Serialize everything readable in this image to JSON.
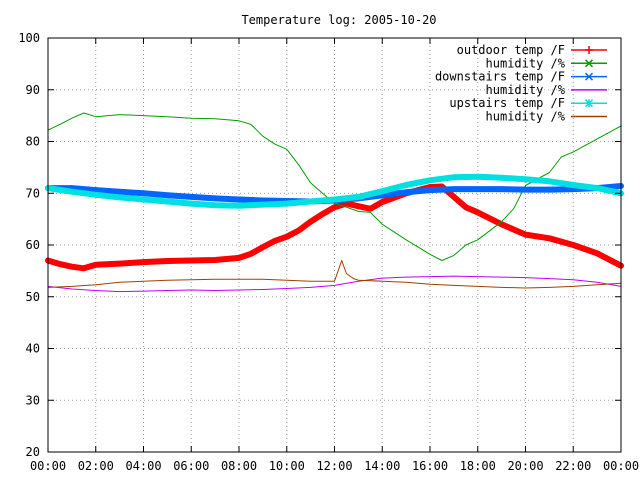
{
  "chart_data": {
    "type": "line",
    "title": "Temperature log: 2005-10-20",
    "xlabel": "",
    "ylabel": "",
    "xlim": [
      0,
      24
    ],
    "ylim": [
      20,
      100
    ],
    "x_ticks": [
      "00:00",
      "02:00",
      "04:00",
      "06:00",
      "08:00",
      "10:00",
      "12:00",
      "14:00",
      "16:00",
      "18:00",
      "20:00",
      "22:00",
      "00:00"
    ],
    "y_ticks": [
      20,
      30,
      40,
      50,
      60,
      70,
      80,
      90,
      100
    ],
    "grid": true,
    "legend_position": "top-right",
    "series": [
      {
        "name": "outdoor temp /F",
        "color": "#ff0000",
        "width": 6,
        "marker": "+",
        "x": [
          0,
          0.5,
          1,
          1.5,
          2,
          3,
          4,
          5,
          6,
          7,
          8,
          8.5,
          9,
          9.5,
          10,
          10.5,
          11,
          11.5,
          12,
          12.5,
          13,
          13.5,
          14,
          15,
          16,
          16.5,
          17,
          17.5,
          18,
          19,
          20,
          21,
          22,
          23,
          24
        ],
        "y": [
          57,
          56.3,
          55.8,
          55.5,
          56.2,
          56.4,
          56.7,
          56.9,
          57.0,
          57.1,
          57.5,
          58.3,
          59.6,
          60.8,
          61.6,
          62.8,
          64.5,
          66.0,
          67.3,
          68.0,
          67.5,
          67.0,
          68.3,
          70.0,
          71.2,
          71.3,
          69.3,
          67.3,
          66.3,
          64.0,
          62.0,
          61.3,
          60.0,
          58.4,
          56.0
        ]
      },
      {
        "name": "humidity /%",
        "color": "#00a000",
        "width": 1,
        "marker": "x",
        "x": [
          0,
          0.5,
          1,
          1.5,
          2,
          3,
          4,
          5,
          6,
          7,
          8,
          8.5,
          9,
          9.5,
          10,
          10.5,
          11,
          11.5,
          12,
          12.5,
          13,
          13.5,
          14,
          15,
          16,
          16.5,
          17,
          17.5,
          18,
          19,
          19.5,
          20,
          21,
          21.5,
          22,
          23,
          24
        ],
        "y": [
          82.2,
          83.3,
          84.5,
          85.5,
          84.8,
          85.2,
          85.0,
          84.8,
          84.5,
          84.4,
          84.0,
          83.3,
          81.0,
          79.5,
          78.5,
          75.5,
          72.0,
          70.0,
          68.0,
          67.3,
          66.5,
          66.3,
          64.0,
          61.0,
          58.2,
          57.0,
          58.0,
          60.0,
          61.0,
          64.5,
          67.0,
          71.5,
          74.0,
          77.0,
          78.0,
          80.5,
          83.0
        ]
      },
      {
        "name": "downstairs temp /F",
        "color": "#0066ff",
        "width": 6,
        "marker": "x",
        "x": [
          0,
          1,
          2,
          3,
          4,
          5,
          6,
          7,
          8,
          9,
          10,
          11,
          12,
          13,
          14,
          15,
          16,
          17,
          18,
          19,
          20,
          21,
          22,
          23,
          24
        ],
        "y": [
          71.0,
          71.0,
          70.6,
          70.3,
          70.0,
          69.6,
          69.3,
          69.0,
          68.8,
          68.6,
          68.5,
          68.4,
          68.6,
          69.0,
          69.6,
          70.2,
          70.6,
          70.8,
          70.8,
          70.8,
          70.7,
          70.7,
          70.8,
          71.0,
          71.4
        ]
      },
      {
        "name": "humidity /%",
        "color": "#c000ff",
        "width": 1,
        "marker": "",
        "x": [
          0,
          1,
          2,
          3,
          4,
          5,
          6,
          7,
          8,
          9,
          10,
          11,
          12,
          13,
          14,
          15,
          16,
          17,
          18,
          19,
          20,
          21,
          22,
          23,
          24
        ],
        "y": [
          52.0,
          51.5,
          51.2,
          51.0,
          51.1,
          51.2,
          51.3,
          51.2,
          51.3,
          51.4,
          51.6,
          51.8,
          52.2,
          53.0,
          53.6,
          53.8,
          53.9,
          54.0,
          53.9,
          53.8,
          53.7,
          53.5,
          53.3,
          52.8,
          52.0
        ]
      },
      {
        "name": "upstairs temp /F",
        "color": "#00e0e0",
        "width": 6,
        "marker": "*",
        "x": [
          0,
          1,
          2,
          3,
          4,
          5,
          6,
          7,
          8,
          9,
          10,
          11,
          12,
          13,
          14,
          15,
          16,
          17,
          18,
          19,
          20,
          21,
          22,
          23,
          24
        ],
        "y": [
          71.0,
          70.3,
          69.7,
          69.2,
          68.8,
          68.4,
          68.0,
          67.7,
          67.6,
          67.8,
          68.0,
          68.4,
          68.8,
          69.3,
          70.4,
          71.6,
          72.5,
          73.1,
          73.2,
          73.0,
          72.7,
          72.3,
          71.6,
          71.0,
          70.0
        ]
      },
      {
        "name": "humidity /%",
        "color": "#a04000",
        "width": 1,
        "marker": "",
        "x": [
          0,
          1,
          2,
          3,
          4,
          5,
          6,
          7,
          8,
          9,
          10,
          11,
          12,
          12.3,
          12.5,
          12.8,
          13,
          14,
          15,
          16,
          17,
          18,
          19,
          20,
          21,
          22,
          23,
          24
        ],
        "y": [
          51.8,
          52.0,
          52.3,
          52.8,
          53.0,
          53.2,
          53.3,
          53.4,
          53.4,
          53.4,
          53.2,
          53.0,
          53.0,
          57.0,
          54.5,
          53.5,
          53.2,
          53.0,
          52.8,
          52.4,
          52.2,
          52.0,
          51.8,
          51.7,
          51.8,
          52.0,
          52.3,
          52.6
        ]
      }
    ]
  }
}
